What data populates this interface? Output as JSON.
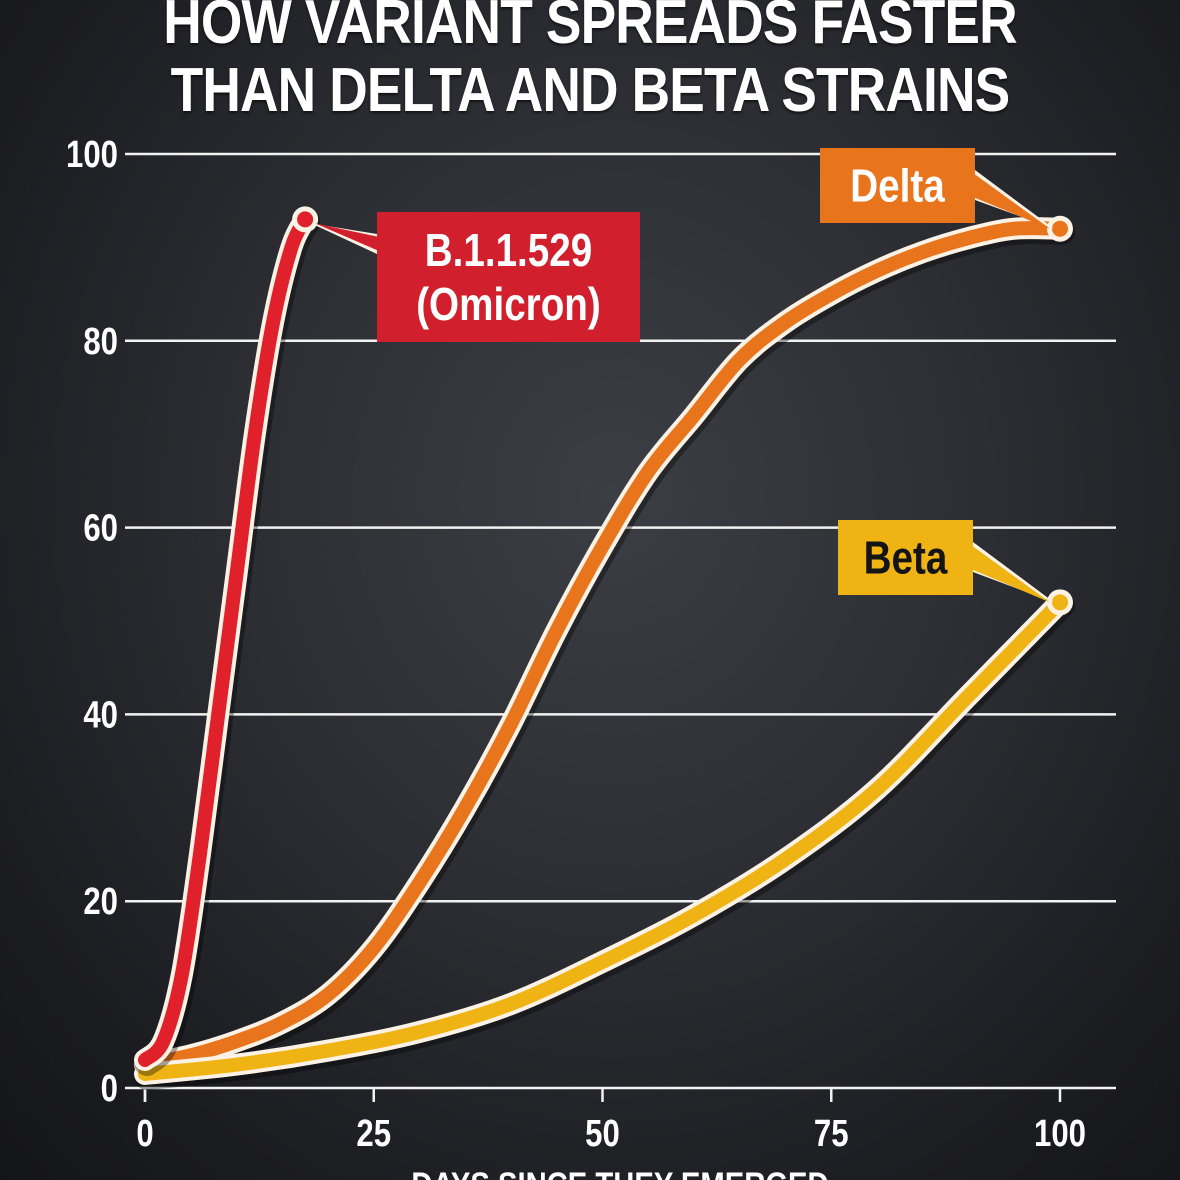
{
  "title_lines": [
    "HOW VARIANT SPREADS FASTER",
    "THAN DELTA AND BETA STRAINS"
  ],
  "chart_data": {
    "type": "line",
    "title": "HOW VARIANT SPREADS FASTER THAN DELTA AND BETA STRAINS",
    "xlabel": "DAYS SINCE THEY EMERGED",
    "ylabel": "",
    "xlim": [
      0,
      100
    ],
    "ylim": [
      0,
      100
    ],
    "xticks": [
      0,
      25,
      50,
      75,
      100
    ],
    "yticks": [
      0,
      20,
      40,
      60,
      80,
      100
    ],
    "grid": "horizontal",
    "series": [
      {
        "name": "Delta",
        "color": "#e8741c",
        "x": [
          0,
          5,
          10,
          15,
          20,
          25,
          30,
          35,
          40,
          45,
          50,
          55,
          60,
          65,
          70,
          75,
          80,
          85,
          90,
          95,
          100
        ],
        "y": [
          2.5,
          3.5,
          5,
          7,
          10,
          15,
          22,
          30,
          39,
          49,
          58,
          66,
          72,
          78,
          82,
          85,
          87.5,
          89.5,
          91,
          92,
          92
        ]
      },
      {
        "name": "Beta",
        "color": "#efb414",
        "x": [
          0,
          10,
          20,
          30,
          40,
          50,
          60,
          70,
          80,
          90,
          100
        ],
        "y": [
          1.5,
          2.5,
          4,
          6,
          9,
          13.5,
          18.5,
          24.5,
          32,
          42,
          52
        ]
      },
      {
        "name": "B.1.1.529\n(Omicron)",
        "color": "#e0202a",
        "x": [
          0,
          2,
          4,
          6,
          8,
          10,
          12,
          14,
          16,
          17.5
        ],
        "y": [
          3,
          5,
          12,
          25,
          40,
          55,
          70,
          82,
          90,
          93
        ]
      }
    ],
    "callouts": [
      {
        "lines": [
          "B.1.1.529",
          "(Omicron)"
        ],
        "series": "B.1.1.529\n(Omicron)",
        "bg": "#d21f2e",
        "text_color": "#ffffff"
      },
      {
        "lines": [
          "Delta"
        ],
        "series": "Delta",
        "bg": "#e8741c",
        "text_color": "#ffffff"
      },
      {
        "lines": [
          "Beta"
        ],
        "series": "Beta",
        "bg": "#efb414",
        "text_color": "#141414"
      }
    ]
  }
}
